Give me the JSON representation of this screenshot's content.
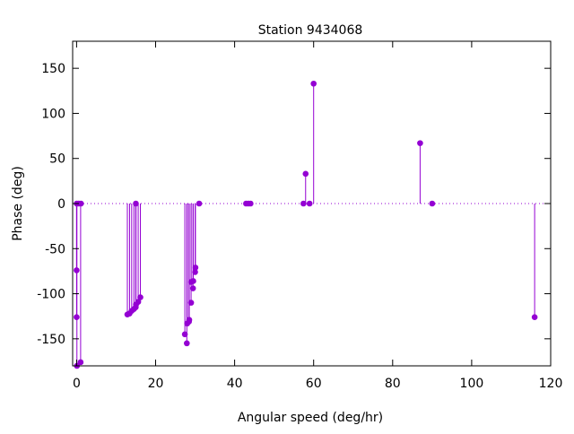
{
  "chart_data": {
    "type": "scatter",
    "style": "impulses-with-points",
    "title": "Station 9434068",
    "xlabel": "Angular speed (deg/hr)",
    "ylabel": "Phase (deg)",
    "xlim": [
      -1,
      120
    ],
    "ylim": [
      -180,
      180
    ],
    "xticks": [
      0,
      20,
      40,
      60,
      80,
      100,
      120
    ],
    "yticks": [
      -150,
      -100,
      -50,
      0,
      50,
      100,
      150
    ],
    "zero_line": "dotted",
    "grid": false,
    "legend": "none",
    "color": "#9400d3",
    "series": [
      {
        "points": [
          [
            0.0,
            -74
          ],
          [
            0.0,
            -126
          ],
          [
            0.04,
            0
          ],
          [
            0.08,
            -180
          ],
          [
            0.54,
            0
          ],
          [
            1.02,
            -176
          ],
          [
            1.1,
            0
          ],
          [
            12.85,
            -123
          ],
          [
            13.4,
            -122
          ],
          [
            13.94,
            -119
          ],
          [
            14.5,
            -117
          ],
          [
            14.96,
            -115
          ],
          [
            15.0,
            0
          ],
          [
            15.04,
            -112
          ],
          [
            15.59,
            -109
          ],
          [
            16.14,
            -104
          ],
          [
            27.4,
            -145
          ],
          [
            27.9,
            -155
          ],
          [
            28.0,
            -133
          ],
          [
            28.44,
            -131
          ],
          [
            28.51,
            -129
          ],
          [
            28.98,
            -110
          ],
          [
            29.0,
            -87
          ],
          [
            29.46,
            -94
          ],
          [
            29.53,
            -86
          ],
          [
            30.0,
            -76
          ],
          [
            30.08,
            -71
          ],
          [
            31.02,
            0
          ],
          [
            42.9,
            0
          ],
          [
            43.48,
            0
          ],
          [
            44.03,
            0
          ],
          [
            57.42,
            0
          ],
          [
            57.97,
            33
          ],
          [
            58.98,
            0
          ],
          [
            60.0,
            133
          ],
          [
            86.95,
            67
          ],
          [
            90.0,
            0
          ],
          [
            115.94,
            -126
          ]
        ]
      }
    ]
  }
}
